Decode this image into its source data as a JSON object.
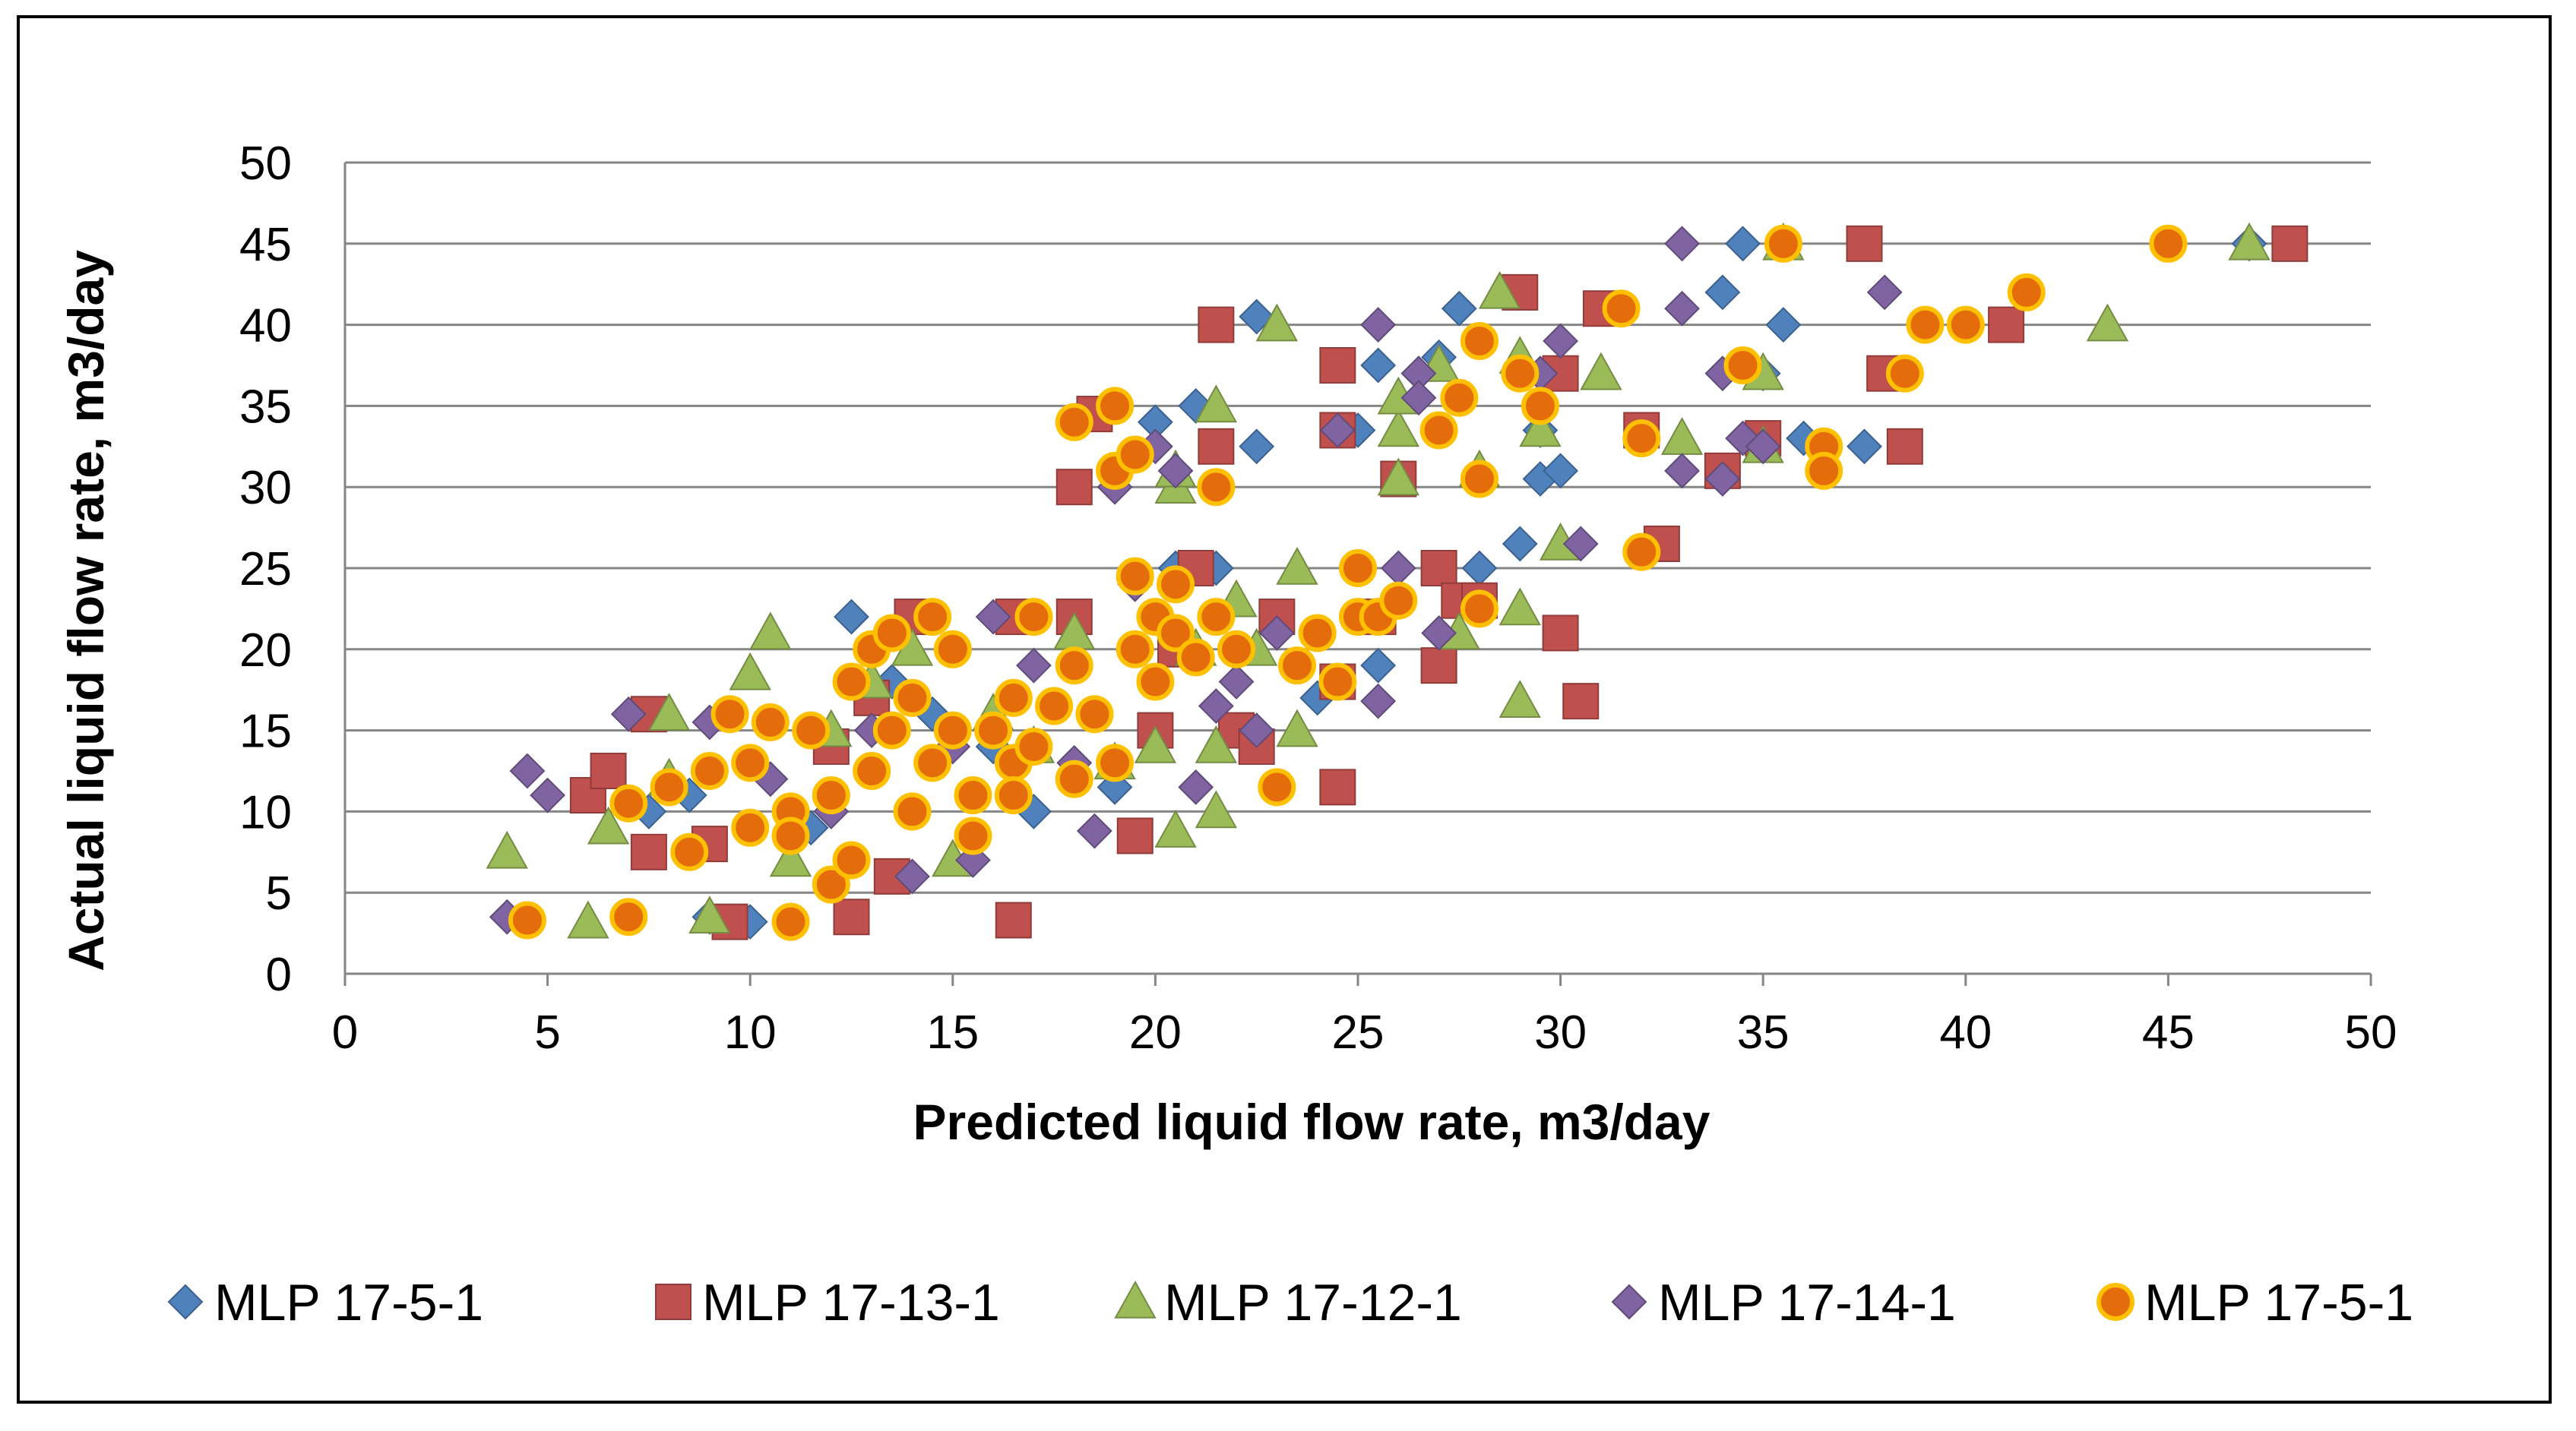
{
  "chart_data": {
    "type": "scatter",
    "title": "",
    "xlabel": "Predicted liquid flow rate, m3/day",
    "ylabel": "Actual liquid flow rate, m3/day",
    "xlim": [
      0,
      50
    ],
    "ylim": [
      0,
      50
    ],
    "x_ticks": [
      "0",
      "5",
      "10",
      "15",
      "20",
      "25",
      "30",
      "35",
      "40",
      "45",
      "50"
    ],
    "y_ticks": [
      "0",
      "5",
      "10",
      "15",
      "20",
      "25",
      "30",
      "35",
      "40",
      "45",
      "50"
    ],
    "grid": "horizontal",
    "legend_position": "bottom",
    "series": [
      {
        "name": "MLP 17-5-1",
        "marker": "diamond",
        "color": "#4F81BD",
        "points": [
          [
            9,
            3.5
          ],
          [
            10,
            3.2
          ],
          [
            11,
            3.2
          ],
          [
            7.5,
            10
          ],
          [
            8.5,
            11
          ],
          [
            10.5,
            12
          ],
          [
            11.5,
            9
          ],
          [
            12.5,
            22
          ],
          [
            13.5,
            18
          ],
          [
            14.5,
            16
          ],
          [
            15,
            20
          ],
          [
            16,
            14
          ],
          [
            17,
            10
          ],
          [
            18,
            12
          ],
          [
            19,
            11.5
          ],
          [
            20,
            34
          ],
          [
            20.5,
            25
          ],
          [
            21,
            35
          ],
          [
            21.5,
            25
          ],
          [
            22.5,
            32.5
          ],
          [
            22.5,
            40.5
          ],
          [
            23.5,
            19
          ],
          [
            24,
            17
          ],
          [
            25,
            33.5
          ],
          [
            25.5,
            37.5
          ],
          [
            25.5,
            19
          ],
          [
            26.5,
            37
          ],
          [
            27,
            38
          ],
          [
            27.5,
            41
          ],
          [
            28,
            25
          ],
          [
            29,
            26.5
          ],
          [
            29.5,
            30.5
          ],
          [
            29.5,
            33.5
          ],
          [
            30,
            31
          ],
          [
            34,
            42
          ],
          [
            34.5,
            45
          ],
          [
            35,
            37
          ],
          [
            35.5,
            40
          ],
          [
            36,
            33
          ],
          [
            37.5,
            32.5
          ],
          [
            47,
            45
          ]
        ]
      },
      {
        "name": "MLP 17-13-1",
        "marker": "square",
        "color": "#C0504D",
        "points": [
          [
            6,
            11
          ],
          [
            6.5,
            12.5
          ],
          [
            7.5,
            16
          ],
          [
            7.5,
            7.5
          ],
          [
            9,
            8
          ],
          [
            9.5,
            3.2
          ],
          [
            12.5,
            3.5
          ],
          [
            12,
            14
          ],
          [
            13,
            17
          ],
          [
            13.5,
            6
          ],
          [
            14,
            22
          ],
          [
            16.5,
            3.3
          ],
          [
            16.5,
            22
          ],
          [
            18,
            30
          ],
          [
            18,
            22
          ],
          [
            18.5,
            34.5
          ],
          [
            19.5,
            8.5
          ],
          [
            20,
            15
          ],
          [
            20.5,
            20
          ],
          [
            21,
            25
          ],
          [
            21.5,
            32.5
          ],
          [
            21.5,
            40
          ],
          [
            22,
            15
          ],
          [
            22.5,
            14
          ],
          [
            23,
            22
          ],
          [
            24.5,
            33.5
          ],
          [
            24.5,
            37.5
          ],
          [
            24.5,
            18
          ],
          [
            24.5,
            11.5
          ],
          [
            25.5,
            22
          ],
          [
            26,
            30.5
          ],
          [
            27,
            25
          ],
          [
            27,
            19
          ],
          [
            27.5,
            23
          ],
          [
            28,
            23
          ],
          [
            29,
            42
          ],
          [
            30,
            37
          ],
          [
            30,
            21
          ],
          [
            30.5,
            16.8
          ],
          [
            31,
            41
          ],
          [
            32,
            33.5
          ],
          [
            32.5,
            26.5
          ],
          [
            34,
            31
          ],
          [
            35,
            33
          ],
          [
            37.5,
            45
          ],
          [
            38,
            37
          ],
          [
            38.5,
            32.5
          ],
          [
            41,
            40
          ],
          [
            48,
            45
          ]
        ]
      },
      {
        "name": "MLP 17-12-1",
        "marker": "triangle",
        "color": "#9BBB59",
        "points": [
          [
            4,
            7.5
          ],
          [
            6,
            3.2
          ],
          [
            6.5,
            9
          ],
          [
            8,
            16
          ],
          [
            8,
            12
          ],
          [
            9,
            3.5
          ],
          [
            10,
            18.5
          ],
          [
            10.5,
            21
          ],
          [
            11,
            7
          ],
          [
            12,
            15
          ],
          [
            13,
            18
          ],
          [
            14,
            20
          ],
          [
            15,
            7
          ],
          [
            16,
            16
          ],
          [
            17,
            14
          ],
          [
            18,
            21
          ],
          [
            19,
            13
          ],
          [
            20,
            14
          ],
          [
            20.5,
            30
          ],
          [
            20.5,
            31
          ],
          [
            20.5,
            8.8
          ],
          [
            21,
            20
          ],
          [
            21.5,
            14
          ],
          [
            21.5,
            10
          ],
          [
            21.5,
            35
          ],
          [
            22,
            23
          ],
          [
            22.5,
            20
          ],
          [
            23,
            40
          ],
          [
            23.5,
            25
          ],
          [
            23.5,
            15
          ],
          [
            26,
            30.5
          ],
          [
            26,
            33.5
          ],
          [
            26,
            35.5
          ],
          [
            27,
            37.5
          ],
          [
            27.5,
            21
          ],
          [
            28,
            31
          ],
          [
            28.5,
            42
          ],
          [
            29,
            38
          ],
          [
            29,
            16.8
          ],
          [
            29,
            22.5
          ],
          [
            29.5,
            33.5
          ],
          [
            30,
            26.5
          ],
          [
            31,
            37
          ],
          [
            33,
            33
          ],
          [
            35,
            37
          ],
          [
            35,
            32.5
          ],
          [
            35.5,
            45
          ],
          [
            43.5,
            40
          ],
          [
            47,
            45
          ]
        ]
      },
      {
        "name": "MLP 17-14-1",
        "marker": "diamond",
        "color": "#8064A2",
        "points": [
          [
            4,
            3.5
          ],
          [
            4.5,
            12.5
          ],
          [
            5,
            11
          ],
          [
            7,
            16
          ],
          [
            9,
            15.5
          ],
          [
            10.5,
            12
          ],
          [
            11,
            3.3
          ],
          [
            12,
            10
          ],
          [
            13,
            15
          ],
          [
            14,
            6
          ],
          [
            15,
            14
          ],
          [
            15.5,
            7
          ],
          [
            16,
            22
          ],
          [
            17,
            19
          ],
          [
            18,
            13
          ],
          [
            18.5,
            8.8
          ],
          [
            19,
            30
          ],
          [
            19.5,
            24
          ],
          [
            20,
            32.5
          ],
          [
            20.5,
            31
          ],
          [
            21,
            11.5
          ],
          [
            21.5,
            16.5
          ],
          [
            22,
            18
          ],
          [
            22.5,
            15
          ],
          [
            23,
            21
          ],
          [
            24.5,
            33.5
          ],
          [
            25,
            25
          ],
          [
            25.5,
            40
          ],
          [
            25.5,
            16.8
          ],
          [
            26,
            25
          ],
          [
            26.5,
            37
          ],
          [
            26.5,
            35.5
          ],
          [
            27,
            21
          ],
          [
            29.5,
            37
          ],
          [
            30,
            39
          ],
          [
            30.5,
            26.5
          ],
          [
            33,
            45
          ],
          [
            33,
            41
          ],
          [
            33,
            31
          ],
          [
            34,
            37
          ],
          [
            34,
            30.5
          ],
          [
            34.5,
            33
          ],
          [
            35,
            32.5
          ],
          [
            38,
            42
          ]
        ]
      },
      {
        "name": "MLP 17-5-1",
        "marker": "circle",
        "color": "#F79646",
        "points": [
          [
            4.5,
            3.3
          ],
          [
            7,
            3.5
          ],
          [
            7,
            10.5
          ],
          [
            8,
            11.5
          ],
          [
            8.5,
            7.5
          ],
          [
            9,
            12.5
          ],
          [
            9.5,
            16
          ],
          [
            10,
            13
          ],
          [
            10,
            9
          ],
          [
            10.5,
            15.5
          ],
          [
            11,
            10
          ],
          [
            11,
            8.5
          ],
          [
            11,
            3.2
          ],
          [
            11.5,
            15
          ],
          [
            12,
            11
          ],
          [
            12,
            5.5
          ],
          [
            12.5,
            7
          ],
          [
            12.5,
            18
          ],
          [
            13,
            12.5
          ],
          [
            13,
            20
          ],
          [
            13.5,
            21
          ],
          [
            13.5,
            15
          ],
          [
            14,
            10
          ],
          [
            14,
            17
          ],
          [
            14.5,
            22
          ],
          [
            14.5,
            13
          ],
          [
            15,
            20
          ],
          [
            15,
            15
          ],
          [
            15.5,
            11
          ],
          [
            15.5,
            8.5
          ],
          [
            16,
            15
          ],
          [
            16.5,
            13
          ],
          [
            16.5,
            17
          ],
          [
            16.5,
            11
          ],
          [
            17,
            22
          ],
          [
            17,
            14
          ],
          [
            17.5,
            16.5
          ],
          [
            18,
            19
          ],
          [
            18,
            12
          ],
          [
            18,
            34
          ],
          [
            18.5,
            16
          ],
          [
            19,
            31
          ],
          [
            19,
            35
          ],
          [
            19,
            13
          ],
          [
            19.5,
            32
          ],
          [
            19.5,
            24.5
          ],
          [
            19.5,
            20
          ],
          [
            20,
            22
          ],
          [
            20,
            18
          ],
          [
            20.5,
            24
          ],
          [
            20.5,
            21
          ],
          [
            21,
            19.5
          ],
          [
            21.5,
            22
          ],
          [
            21.5,
            30
          ],
          [
            22,
            20
          ],
          [
            23,
            11.5
          ],
          [
            23.5,
            19
          ],
          [
            24,
            21
          ],
          [
            24.5,
            18
          ],
          [
            25,
            22
          ],
          [
            25,
            25
          ],
          [
            25.5,
            22
          ],
          [
            26,
            23
          ],
          [
            27,
            33.5
          ],
          [
            27.5,
            35.5
          ],
          [
            28,
            22.5
          ],
          [
            28,
            30.5
          ],
          [
            28,
            39
          ],
          [
            29,
            37
          ],
          [
            29.5,
            35
          ],
          [
            31.5,
            41
          ],
          [
            32,
            33
          ],
          [
            32,
            26
          ],
          [
            34.5,
            37.5
          ],
          [
            35.5,
            45
          ],
          [
            36.5,
            32.5
          ],
          [
            36.5,
            31
          ],
          [
            38.5,
            37
          ],
          [
            39,
            40
          ],
          [
            40,
            40
          ],
          [
            41.5,
            42
          ],
          [
            45,
            45
          ]
        ]
      }
    ]
  }
}
